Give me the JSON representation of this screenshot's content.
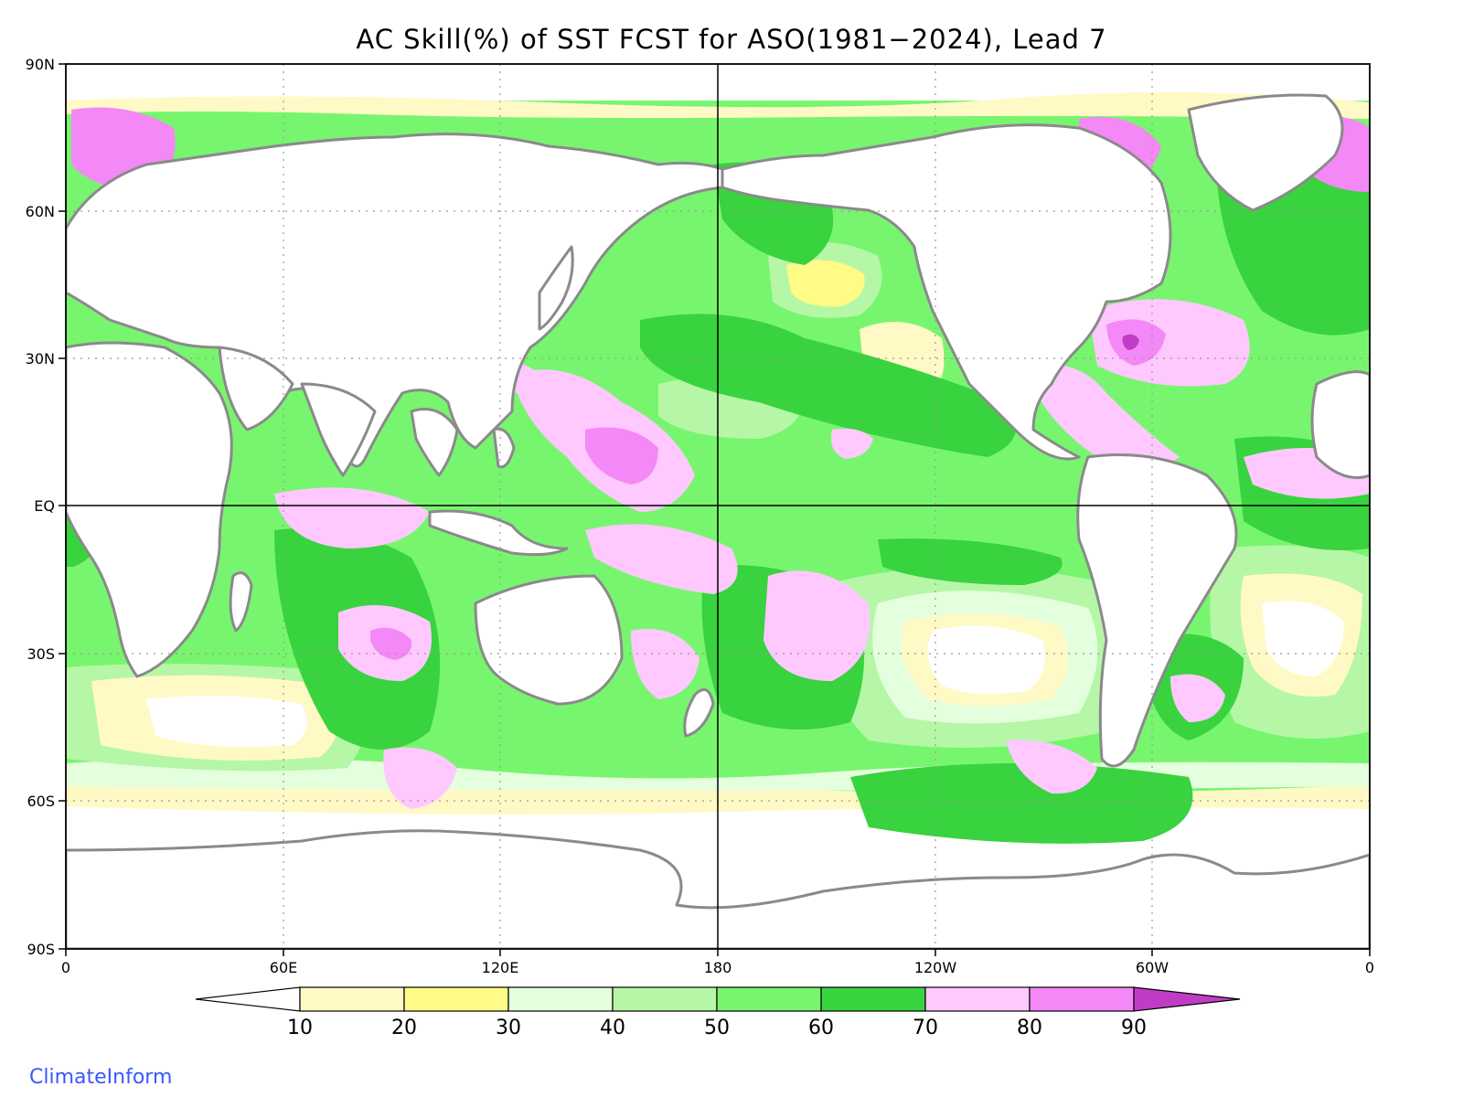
{
  "title": "AC Skill(%) of SST FCST for ASO(1981−2024), Lead 7",
  "credit": "ClimateInform",
  "map": {
    "lat_labels": [
      "90N",
      "60N",
      "30N",
      "EQ",
      "30S",
      "60S",
      "90S"
    ],
    "lon_labels": [
      "0",
      "60E",
      "120E",
      "180",
      "120W",
      "60W",
      "0"
    ],
    "grid": "dotted every 30 degrees",
    "reference_lines": [
      "equator",
      "180 meridian"
    ]
  },
  "colorbar": {
    "tick_labels": [
      "10",
      "20",
      "30",
      "40",
      "50",
      "60",
      "70",
      "80",
      "90"
    ],
    "colors": [
      "#ffffff",
      "#fff9c6",
      "#fffb86",
      "#e4ffde",
      "#b5f7a6",
      "#78f56f",
      "#38d33f",
      "#ffc8ff",
      "#f488f6",
      "#c03cc6"
    ]
  },
  "colors": {
    "coastline": "#8a8a8a",
    "border": "#000000",
    "credit": "#3a57ff"
  }
}
